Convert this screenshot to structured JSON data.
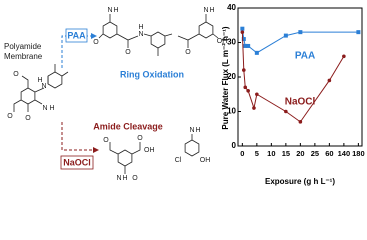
{
  "diagram": {
    "membrane_label": [
      "Polyamide",
      "Membrane"
    ],
    "paa_label": "PAA",
    "naocl_label": "NaOCl",
    "oxidation_label": "Ring Oxidation",
    "cleavage_label": "Amide Cleavage",
    "atoms": [
      "N",
      "H",
      "O",
      "O",
      "N",
      "H",
      "O",
      "N",
      "H",
      "O",
      "O",
      "N",
      "H",
      "OH",
      "N",
      "H",
      "O",
      "OH",
      "O",
      "N",
      "H",
      "Cl",
      "OH",
      "O",
      "N",
      "H",
      "O"
    ]
  },
  "chart_data": {
    "type": "line",
    "ylabel": "Pure Water Flux (L m⁻² h⁻¹)",
    "xlabel": "Exposure (g h L⁻¹)",
    "xlim": [
      -1.5,
      190
    ],
    "xticks": [
      0,
      5,
      10,
      15,
      20,
      25,
      60,
      140,
      180
    ],
    "ylim": [
      0,
      40
    ],
    "yticks": [
      0,
      10,
      20,
      30,
      40
    ],
    "series": [
      {
        "name": "PAA",
        "color": "#2b7fd6",
        "x": [
          0,
          0.5,
          1,
          2,
          5,
          15,
          20,
          180
        ],
        "values": [
          34,
          31,
          29,
          29,
          27,
          32,
          33,
          33
        ]
      },
      {
        "name": "NaOCl",
        "color": "#8b1c1c",
        "x": [
          0,
          0.5,
          1,
          2,
          4,
          5,
          15,
          20,
          60,
          140
        ],
        "values": [
          33,
          22,
          17,
          16,
          11,
          15,
          10,
          7,
          19,
          26
        ]
      }
    ]
  }
}
